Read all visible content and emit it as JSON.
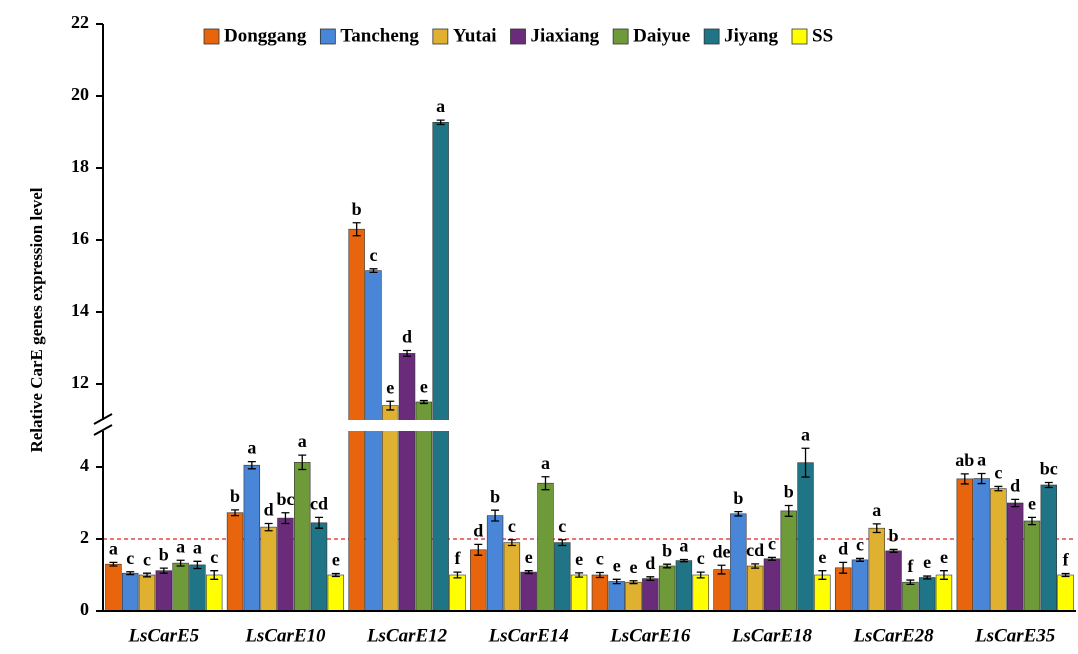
{
  "chart_data": {
    "type": "bar",
    "y_label": "Relative CarE genes expression level",
    "categories": [
      "LsCarE5",
      "LsCarE10",
      "LsCarE12",
      "LsCarE14",
      "LsCarE16",
      "LsCarE18",
      "LsCarE28",
      "LsCarE35"
    ],
    "series": [
      {
        "name": "Donggang",
        "color": "#e8650e",
        "values": [
          1.3,
          2.73,
          16.3,
          1.7,
          1.0,
          1.15,
          1.2,
          3.67
        ],
        "errors": [
          0.05,
          0.08,
          0.18,
          0.15,
          0.07,
          0.12,
          0.15,
          0.14
        ],
        "letters": [
          "a",
          "b",
          "b",
          "d",
          "c",
          "de",
          "d",
          "ab"
        ]
      },
      {
        "name": "Tancheng",
        "color": "#4a86d8",
        "values": [
          1.05,
          4.05,
          15.15,
          2.65,
          0.82,
          2.7,
          1.42,
          3.68
        ],
        "errors": [
          0.04,
          0.1,
          0.05,
          0.15,
          0.06,
          0.06,
          0.04,
          0.14
        ],
        "letters": [
          "c",
          "a",
          "c",
          "b",
          "e",
          "b",
          "c",
          "a"
        ]
      },
      {
        "name": "Yutai",
        "color": "#e0b030",
        "values": [
          1.0,
          2.33,
          11.4,
          1.9,
          0.8,
          1.25,
          2.3,
          3.4
        ],
        "errors": [
          0.05,
          0.1,
          0.12,
          0.08,
          0.04,
          0.06,
          0.12,
          0.06
        ],
        "letters": [
          "c",
          "d",
          "e",
          "c",
          "e",
          "cd",
          "a",
          "c"
        ]
      },
      {
        "name": "Jiaxiang",
        "color": "#6a2c7a",
        "values": [
          1.12,
          2.58,
          12.85,
          1.08,
          0.9,
          1.45,
          1.67,
          3.0
        ],
        "errors": [
          0.07,
          0.15,
          0.08,
          0.04,
          0.05,
          0.04,
          0.04,
          0.1
        ],
        "letters": [
          "b",
          "bc",
          "d",
          "e",
          "d",
          "c",
          "b",
          "d"
        ]
      },
      {
        "name": "Daiyue",
        "color": "#6e9a3a",
        "values": [
          1.33,
          4.13,
          11.5,
          3.55,
          1.25,
          2.78,
          0.8,
          2.5
        ],
        "errors": [
          0.08,
          0.2,
          0.04,
          0.18,
          0.05,
          0.15,
          0.06,
          0.1
        ],
        "letters": [
          "a",
          "a",
          "e",
          "a",
          "b",
          "b",
          "f",
          "e"
        ]
      },
      {
        "name": "Jiyang",
        "color": "#1f7485",
        "values": [
          1.28,
          2.45,
          19.27,
          1.9,
          1.4,
          4.12,
          0.93,
          3.5
        ],
        "errors": [
          0.1,
          0.15,
          0.06,
          0.08,
          0.03,
          0.4,
          0.04,
          0.07
        ],
        "letters": [
          "a",
          "cd",
          "a",
          "c",
          "a",
          "a",
          "e",
          "bc"
        ]
      },
      {
        "name": "SS",
        "color": "#ffff00",
        "values": [
          1.0,
          1.0,
          1.0,
          1.0,
          1.0,
          1.0,
          1.0,
          1.0
        ],
        "errors": [
          0.12,
          0.04,
          0.08,
          0.06,
          0.08,
          0.12,
          0.12,
          0.04
        ],
        "letters": [
          "c",
          "e",
          "f",
          "e",
          "c",
          "e",
          "e",
          "f"
        ]
      }
    ],
    "ylim": [
      0,
      22
    ],
    "y_break": [
      5,
      11
    ],
    "yticks": [
      0,
      2,
      4,
      12,
      14,
      16,
      18,
      20,
      22
    ],
    "reference_line": 2,
    "reference_color": "#e02020",
    "legend": "top"
  }
}
